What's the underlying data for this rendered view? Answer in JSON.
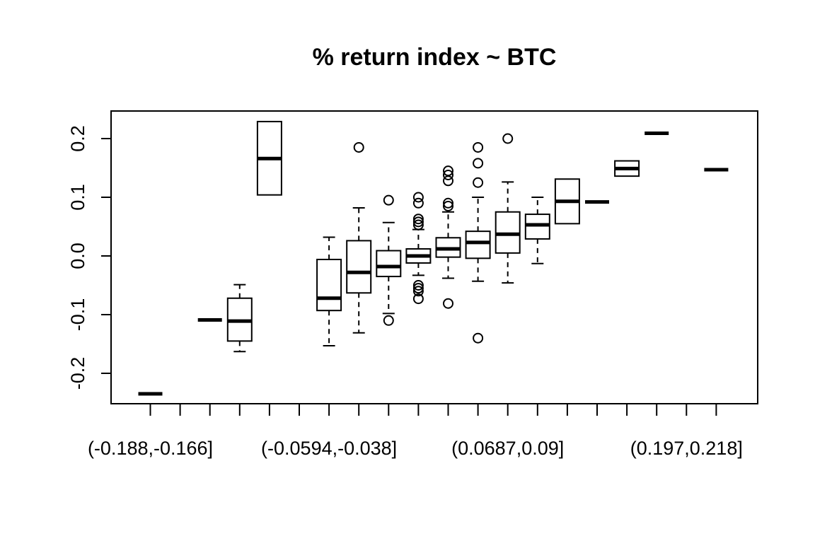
{
  "chart_data": {
    "type": "boxplot",
    "title": "% return index ~ BTC",
    "xlabel": "",
    "ylabel": "",
    "ylim": [
      -0.25,
      0.25
    ],
    "y_ticks": [
      -0.2,
      -0.1,
      0.0,
      0.1,
      0.2
    ],
    "y_tick_labels": [
      "-0.2",
      "-0.1",
      "0.0",
      "0.1",
      "0.2"
    ],
    "x_tick_labels": [
      "(-0.188,-0.166]",
      "(-0.0594,-0.038]",
      "(0.0687,0.09]",
      "(0.197,0.218]"
    ],
    "x_tick_label_positions": [
      1,
      7,
      13,
      19
    ],
    "num_categories": 20,
    "boxes": [
      {
        "pos": 1,
        "min": -0.235,
        "q1": -0.235,
        "median": -0.235,
        "q3": -0.235,
        "max": -0.235,
        "outliers": []
      },
      {
        "pos": 3,
        "min": -0.109,
        "q1": -0.109,
        "median": -0.109,
        "q3": -0.109,
        "max": -0.109,
        "outliers": []
      },
      {
        "pos": 4,
        "min": -0.163,
        "q1": -0.145,
        "median": -0.111,
        "q3": -0.072,
        "max": -0.049,
        "outliers": []
      },
      {
        "pos": 5,
        "min": 0.104,
        "q1": 0.104,
        "median": 0.166,
        "q3": 0.229,
        "max": 0.229,
        "outliers": []
      },
      {
        "pos": 7,
        "min": -0.153,
        "q1": -0.093,
        "median": -0.072,
        "q3": -0.006,
        "max": 0.032,
        "outliers": []
      },
      {
        "pos": 8,
        "min": -0.131,
        "q1": -0.063,
        "median": -0.028,
        "q3": 0.026,
        "max": 0.082,
        "outliers": [
          0.185
        ]
      },
      {
        "pos": 9,
        "min": -0.098,
        "q1": -0.035,
        "median": -0.018,
        "q3": 0.009,
        "max": 0.057,
        "outliers": [
          0.095,
          -0.11
        ]
      },
      {
        "pos": 10,
        "min": -0.033,
        "q1": -0.012,
        "median": 0.0,
        "q3": 0.012,
        "max": 0.045,
        "outliers": [
          0.1,
          0.09,
          0.063,
          0.058,
          0.053,
          -0.05,
          -0.055,
          -0.06,
          -0.073
        ]
      },
      {
        "pos": 11,
        "min": -0.038,
        "q1": -0.002,
        "median": 0.012,
        "q3": 0.031,
        "max": 0.075,
        "outliers": [
          0.145,
          0.138,
          0.128,
          0.09,
          0.085,
          -0.081
        ]
      },
      {
        "pos": 12,
        "min": -0.043,
        "q1": -0.004,
        "median": 0.023,
        "q3": 0.042,
        "max": 0.1,
        "outliers": [
          0.185,
          0.158,
          0.125,
          -0.14
        ]
      },
      {
        "pos": 13,
        "min": -0.046,
        "q1": 0.005,
        "median": 0.037,
        "q3": 0.075,
        "max": 0.126,
        "outliers": [
          0.2
        ]
      },
      {
        "pos": 14,
        "min": -0.013,
        "q1": 0.029,
        "median": 0.053,
        "q3": 0.071,
        "max": 0.1,
        "outliers": []
      },
      {
        "pos": 15,
        "min": 0.055,
        "q1": 0.055,
        "median": 0.093,
        "q3": 0.131,
        "max": 0.131,
        "outliers": []
      },
      {
        "pos": 16,
        "min": 0.092,
        "q1": 0.092,
        "median": 0.092,
        "q3": 0.092,
        "max": 0.092,
        "outliers": []
      },
      {
        "pos": 17,
        "min": 0.136,
        "q1": 0.136,
        "median": 0.149,
        "q3": 0.162,
        "max": 0.162,
        "outliers": []
      },
      {
        "pos": 18,
        "min": 0.209,
        "q1": 0.209,
        "median": 0.209,
        "q3": 0.209,
        "max": 0.209,
        "outliers": []
      },
      {
        "pos": 20,
        "min": 0.147,
        "q1": 0.147,
        "median": 0.147,
        "q3": 0.147,
        "max": 0.147,
        "outliers": []
      }
    ]
  }
}
